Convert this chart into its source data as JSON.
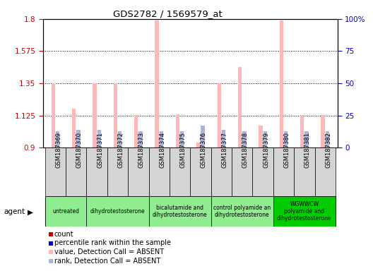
{
  "title": "GDS2782 / 1569579_at",
  "samples": [
    "GSM187369",
    "GSM187370",
    "GSM187371",
    "GSM187372",
    "GSM187373",
    "GSM187374",
    "GSM187375",
    "GSM187376",
    "GSM187377",
    "GSM187378",
    "GSM187379",
    "GSM187380",
    "GSM187381",
    "GSM187382"
  ],
  "count_values": [
    1.35,
    1.175,
    1.35,
    1.35,
    1.13,
    1.79,
    1.135,
    0.935,
    1.35,
    1.465,
    1.055,
    1.79,
    1.13,
    1.13
  ],
  "rank_pct": [
    13,
    14,
    14,
    13,
    13,
    13,
    13,
    17,
    14,
    13,
    13,
    13,
    13,
    13
  ],
  "detection_absent": [
    true,
    true,
    true,
    true,
    true,
    true,
    true,
    true,
    true,
    true,
    true,
    true,
    true,
    true
  ],
  "ylim_left": [
    0.9,
    1.8
  ],
  "ylim_right": [
    0,
    100
  ],
  "yticks_left": [
    0.9,
    1.125,
    1.35,
    1.575,
    1.8
  ],
  "yticks_right": [
    0,
    25,
    50,
    75,
    100
  ],
  "ytick_labels_left": [
    "0.9",
    "1.125",
    "1.35",
    "1.575",
    "1.8"
  ],
  "ytick_labels_right": [
    "0",
    "25",
    "50",
    "75",
    "100%"
  ],
  "agent_groups": [
    {
      "label": "untreated",
      "start": 0,
      "end": 2,
      "color": "#90ee90"
    },
    {
      "label": "dihydrotestosterone",
      "start": 2,
      "end": 5,
      "color": "#90ee90"
    },
    {
      "label": "bicalutamide and\ndihydrotestosterone",
      "start": 5,
      "end": 8,
      "color": "#90ee90"
    },
    {
      "label": "control polyamide an\ndihydrotestosterone",
      "start": 8,
      "end": 11,
      "color": "#90ee90"
    },
    {
      "label": "WGWWCW\npolyamide and\ndihydrotestosterone",
      "start": 11,
      "end": 14,
      "color": "#00cc00"
    }
  ],
  "bar_width": 0.18,
  "absent_bar_color": "#ffb8b8",
  "absent_rank_color": "#aab4d8",
  "left_axis_color": "#cc0000",
  "right_axis_color": "#0000cc",
  "bg_xticklabel": "#d4d4d4",
  "legend_items": [
    {
      "color": "#cc0000",
      "label": "count"
    },
    {
      "color": "#0000cc",
      "label": "percentile rank within the sample"
    },
    {
      "color": "#ffb8b8",
      "label": "value, Detection Call = ABSENT"
    },
    {
      "color": "#aab4d8",
      "label": "rank, Detection Call = ABSENT"
    }
  ]
}
